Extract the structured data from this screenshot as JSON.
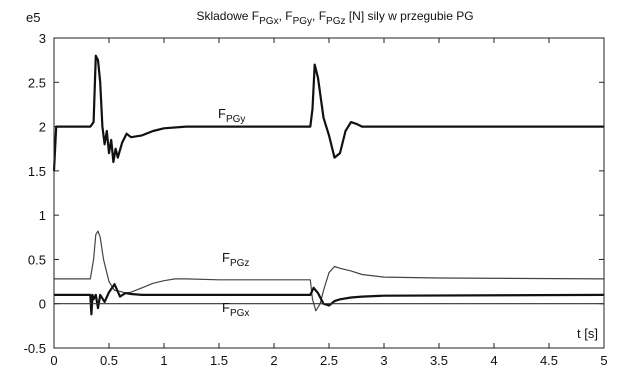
{
  "chart_data": {
    "type": "line",
    "title": {
      "parts": [
        {
          "text": "Skladowe  F",
          "sub": false
        },
        {
          "text": "PGx",
          "sub": true
        },
        {
          "text": ", F",
          "sub": false
        },
        {
          "text": "PGy",
          "sub": true
        },
        {
          "text": ", F",
          "sub": false
        },
        {
          "text": "PGz",
          "sub": true
        },
        {
          "text": " [N] sily w przegubie PG",
          "sub": false
        }
      ]
    },
    "y_multiplier_label": "e5",
    "xlabel": "t [s]",
    "xlim": [
      0,
      5
    ],
    "ylim": [
      -0.5,
      3
    ],
    "x_ticks": [
      0,
      0.5,
      1,
      1.5,
      2,
      2.5,
      3,
      3.5,
      4,
      4.5,
      5
    ],
    "x_tick_labels": [
      "0",
      "0.5",
      "1",
      "1.5",
      "2",
      "2.5",
      "3",
      "3.5",
      "4",
      "4.5",
      "5"
    ],
    "y_ticks": [
      -0.5,
      0,
      0.5,
      1,
      1.5,
      2,
      2.5,
      3
    ],
    "y_tick_labels": [
      "-0.5",
      "0",
      "0.5",
      "1",
      "1.5",
      "2",
      "2.5",
      "3"
    ],
    "grid": false,
    "series": [
      {
        "name": "F_PGy",
        "label_main": "F",
        "label_sub": "PGy",
        "color": "#111111",
        "stroke": "thick",
        "points": [
          [
            0,
            1.5
          ],
          [
            0.02,
            2.0
          ],
          [
            0.33,
            2.0
          ],
          [
            0.36,
            2.05
          ],
          [
            0.38,
            2.8
          ],
          [
            0.4,
            2.75
          ],
          [
            0.42,
            2.5
          ],
          [
            0.44,
            2.0
          ],
          [
            0.46,
            1.8
          ],
          [
            0.48,
            1.95
          ],
          [
            0.5,
            1.7
          ],
          [
            0.52,
            1.85
          ],
          [
            0.54,
            1.6
          ],
          [
            0.56,
            1.75
          ],
          [
            0.58,
            1.65
          ],
          [
            0.62,
            1.82
          ],
          [
            0.66,
            1.92
          ],
          [
            0.7,
            1.88
          ],
          [
            0.8,
            1.9
          ],
          [
            0.9,
            1.95
          ],
          [
            1.0,
            1.98
          ],
          [
            1.2,
            2.0
          ],
          [
            2.33,
            2.0
          ],
          [
            2.35,
            2.2
          ],
          [
            2.37,
            2.7
          ],
          [
            2.4,
            2.55
          ],
          [
            2.45,
            2.1
          ],
          [
            2.5,
            1.9
          ],
          [
            2.55,
            1.65
          ],
          [
            2.6,
            1.7
          ],
          [
            2.65,
            1.95
          ],
          [
            2.7,
            2.05
          ],
          [
            2.75,
            2.03
          ],
          [
            2.8,
            2.0
          ],
          [
            5.0,
            2.0
          ]
        ]
      },
      {
        "name": "F_PGz",
        "label_main": "F",
        "label_sub": "PGz",
        "color": "#444444",
        "stroke": "thin",
        "points": [
          [
            0,
            0.28
          ],
          [
            0.33,
            0.28
          ],
          [
            0.36,
            0.5
          ],
          [
            0.38,
            0.78
          ],
          [
            0.4,
            0.82
          ],
          [
            0.42,
            0.75
          ],
          [
            0.45,
            0.5
          ],
          [
            0.48,
            0.35
          ],
          [
            0.5,
            0.25
          ],
          [
            0.55,
            0.15
          ],
          [
            0.6,
            0.14
          ],
          [
            0.65,
            0.12
          ],
          [
            0.7,
            0.13
          ],
          [
            0.8,
            0.18
          ],
          [
            0.9,
            0.23
          ],
          [
            1.0,
            0.26
          ],
          [
            1.1,
            0.28
          ],
          [
            1.2,
            0.28
          ],
          [
            1.5,
            0.27
          ],
          [
            2.0,
            0.27
          ],
          [
            2.33,
            0.27
          ],
          [
            2.35,
            0.05
          ],
          [
            2.38,
            -0.08
          ],
          [
            2.42,
            0.0
          ],
          [
            2.45,
            0.15
          ],
          [
            2.5,
            0.35
          ],
          [
            2.55,
            0.42
          ],
          [
            2.6,
            0.4
          ],
          [
            2.7,
            0.37
          ],
          [
            2.8,
            0.33
          ],
          [
            3.0,
            0.3
          ],
          [
            3.5,
            0.29
          ],
          [
            5.0,
            0.28
          ]
        ]
      },
      {
        "name": "F_PGx",
        "label_main": "F",
        "label_sub": "PGx",
        "color": "#111111",
        "stroke": "thick",
        "points": [
          [
            0,
            0.1
          ],
          [
            0.33,
            0.1
          ],
          [
            0.34,
            -0.12
          ],
          [
            0.35,
            0.1
          ],
          [
            0.36,
            0.05
          ],
          [
            0.38,
            0.1
          ],
          [
            0.4,
            -0.05
          ],
          [
            0.42,
            0.1
          ],
          [
            0.46,
            0.02
          ],
          [
            0.5,
            0.13
          ],
          [
            0.55,
            0.22
          ],
          [
            0.6,
            0.08
          ],
          [
            0.65,
            0.12
          ],
          [
            0.7,
            0.11
          ],
          [
            0.8,
            0.1
          ],
          [
            2.33,
            0.1
          ],
          [
            2.36,
            0.18
          ],
          [
            2.4,
            0.12
          ],
          [
            2.45,
            0.0
          ],
          [
            2.5,
            -0.02
          ],
          [
            2.55,
            0.03
          ],
          [
            2.6,
            0.05
          ],
          [
            2.7,
            0.07
          ],
          [
            2.8,
            0.08
          ],
          [
            3.0,
            0.09
          ],
          [
            5.0,
            0.1
          ]
        ]
      },
      {
        "name": "zero",
        "color": "#333333",
        "stroke": "thin",
        "points": [
          [
            0,
            0
          ],
          [
            5,
            0
          ]
        ]
      }
    ]
  }
}
